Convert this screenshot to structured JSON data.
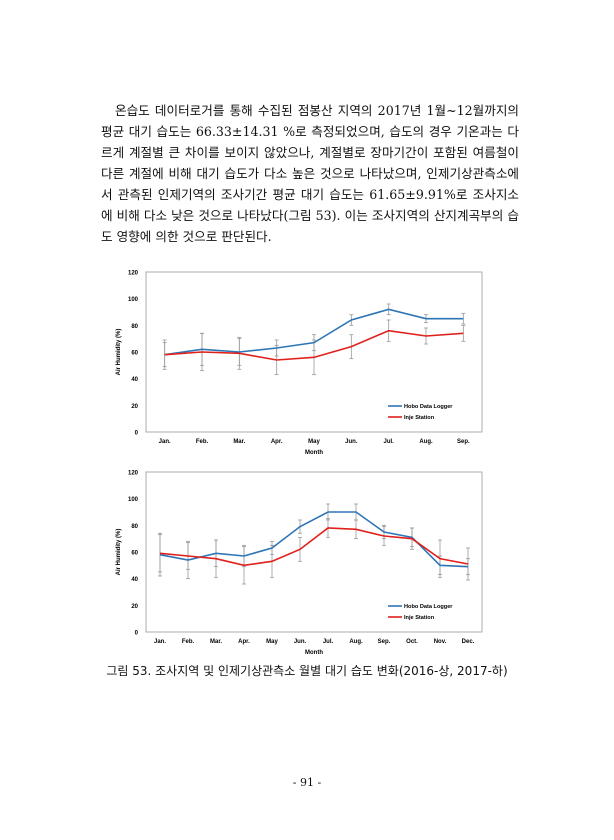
{
  "paragraph": "온습도 데이터로거를 통해 수집된 점봉산 지역의 2017년 1월~12월까지의 평균 대기 습도는 66.33±14.31 %로 측정되었으며, 습도의 경우 기온과는 다르게 계절별 큰 차이를 보이지 않았으나, 계절별로 장마기간이 포함된 여름철이 다른 계절에 비해 대기 습도가 다소 높은 것으로 나타났으며, 인제기상관측소에서 관측된 인제기역의 조사기간 평균 대기 습도는 61.65±9.91%로 조사지소에 비해 다소 낮은 것으로 나타났다(그림 53). 이는 조사지역의 산지계곡부의 습도 영향에 의한 것으로 판단된다.",
  "caption": "그림 53. 조사지역 및 인제기상관측소 월별 대기 습도 변화(2016-상, 2017-하)",
  "page_number": "- 91 -",
  "colors": {
    "hobo": "#2e75b6",
    "inje": "#e0201b"
  },
  "chart_data": [
    {
      "type": "line",
      "xlabel": "Month",
      "ylabel": "Air Humidity (%)",
      "ylim": [
        0,
        120
      ],
      "yticks": [
        "0",
        "20",
        "40",
        "60",
        "80",
        "100",
        "120"
      ],
      "legend": "bottom-right",
      "categories": [
        "Jan.",
        "Feb.",
        "Mar.",
        "Apr.",
        "May",
        "Jun.",
        "Jul.",
        "Aug.",
        "Sep."
      ],
      "series": [
        {
          "name": "Hobo Data Logger",
          "values": [
            58,
            62,
            60,
            63,
            67,
            84,
            92,
            85,
            85
          ],
          "error": [
            11,
            12,
            10,
            6,
            6,
            4,
            4,
            3,
            4
          ]
        },
        {
          "name": "Inje Station",
          "values": [
            58,
            60,
            59,
            54,
            56,
            64,
            76,
            72,
            74
          ],
          "error": [
            9,
            14,
            12,
            11,
            13,
            9,
            8,
            6,
            6
          ]
        }
      ]
    },
    {
      "type": "line",
      "xlabel": "Month",
      "ylabel": "Air Humidity (%)",
      "ylim": [
        0,
        120
      ],
      "yticks": [
        "0",
        "20",
        "40",
        "60",
        "80",
        "100",
        "120"
      ],
      "legend": "bottom-right",
      "categories": [
        "Jan.",
        "Feb.",
        "Mar.",
        "Apr.",
        "May",
        "Jun.",
        "Jul.",
        "Aug.",
        "Sep.",
        "Oct.",
        "Nov.",
        "Dec."
      ],
      "series": [
        {
          "name": "Hobo Data Logger",
          "values": [
            58,
            54,
            59,
            57,
            63,
            79,
            90,
            90,
            75,
            71,
            50,
            49
          ],
          "error": [
            16,
            14,
            10,
            8,
            5,
            5,
            6,
            6,
            5,
            7,
            7,
            6
          ]
        },
        {
          "name": "Inje Station",
          "values": [
            59,
            57,
            55,
            50,
            53,
            62,
            78,
            77,
            72,
            70,
            55,
            51
          ],
          "error": [
            14,
            10,
            14,
            14,
            12,
            9,
            7,
            7,
            7,
            8,
            14,
            12
          ]
        }
      ]
    }
  ]
}
